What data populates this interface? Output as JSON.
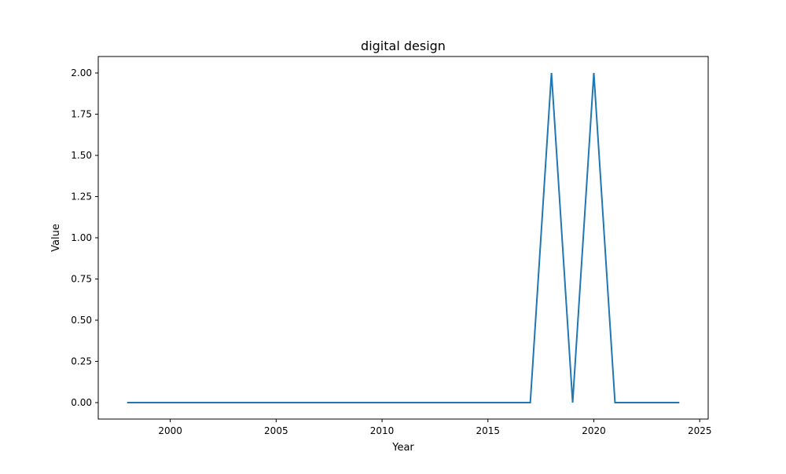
{
  "chart_data": {
    "type": "line",
    "title": "digital design",
    "xlabel": "Year",
    "ylabel": "Value",
    "xlim": [
      1996.6,
      2025.4
    ],
    "ylim": [
      -0.1,
      2.1
    ],
    "xticks": [
      2000,
      2005,
      2010,
      2015,
      2020,
      2025
    ],
    "yticks": [
      0.0,
      0.25,
      0.5,
      0.75,
      1.0,
      1.25,
      1.5,
      1.75,
      2.0
    ],
    "ytick_labels": [
      "0.00",
      "0.25",
      "0.50",
      "0.75",
      "1.00",
      "1.25",
      "1.50",
      "1.75",
      "2.00"
    ],
    "grid": false,
    "legend": "none",
    "series": [
      {
        "color": "#1f77b4",
        "x": [
          1998,
          1999,
          2000,
          2001,
          2002,
          2003,
          2004,
          2005,
          2006,
          2007,
          2008,
          2009,
          2010,
          2011,
          2012,
          2013,
          2014,
          2015,
          2016,
          2017,
          2018,
          2019,
          2020,
          2021,
          2022,
          2023,
          2024
        ],
        "y": [
          0,
          0,
          0,
          0,
          0,
          0,
          0,
          0,
          0,
          0,
          0,
          0,
          0,
          0,
          0,
          0,
          0,
          0,
          0,
          0,
          2,
          0,
          2,
          0,
          0,
          0,
          0
        ]
      }
    ]
  }
}
